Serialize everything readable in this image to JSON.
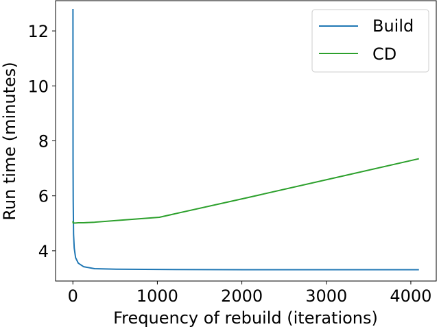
{
  "chart_data": {
    "type": "line",
    "xlabel": "Frequency of rebuild (iterations)",
    "ylabel": "Run time (minutes)",
    "xlim": [
      -205,
      4301
    ],
    "ylim": [
      2.9,
      13.1
    ],
    "xticks": [
      0,
      1000,
      2000,
      3000,
      4000
    ],
    "xtick_labels": [
      "0",
      "1000",
      "2000",
      "3000",
      "4000"
    ],
    "yticks": [
      4,
      6,
      8,
      10,
      12
    ],
    "ytick_labels": [
      "4",
      "6",
      "8",
      "10",
      "12"
    ],
    "grid": false,
    "legend_position": "top-right",
    "series": [
      {
        "name": "Build",
        "color": "#1f77b4",
        "x": [
          1,
          2,
          4,
          8,
          16,
          32,
          64,
          128,
          256,
          512,
          1024,
          2048,
          4096
        ],
        "y": [
          12.8,
          7.3,
          5.8,
          4.6,
          4.1,
          3.75,
          3.55,
          3.42,
          3.35,
          3.33,
          3.32,
          3.31,
          3.31
        ]
      },
      {
        "name": "CD",
        "color": "#2ca02c",
        "x": [
          1,
          2,
          4,
          8,
          16,
          32,
          64,
          128,
          256,
          512,
          1024,
          2048,
          4096
        ],
        "y": [
          5.08,
          5.02,
          5.01,
          5.01,
          5.01,
          5.01,
          5.02,
          5.02,
          5.04,
          5.1,
          5.22,
          5.92,
          7.35
        ]
      }
    ]
  }
}
